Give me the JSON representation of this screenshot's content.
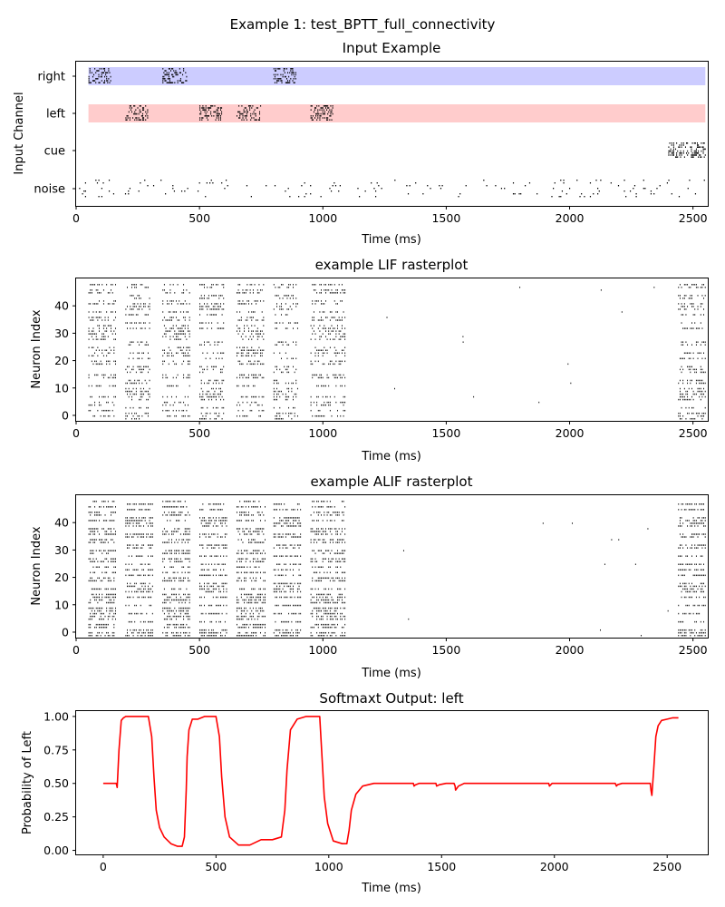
{
  "suptitle": "Example 1: test_BPTT_full_connectivity",
  "colors": {
    "right_band": "#ccccff",
    "left_band": "#ffcccc",
    "spike": "#000000",
    "output_line": "#ff0000"
  },
  "chart_data": [
    {
      "type": "raster",
      "title": "Input Example",
      "xlabel": "Time (ms)",
      "ylabel": "Input Channel",
      "xlim": [
        0,
        2560
      ],
      "xticks": [
        0,
        500,
        1000,
        1500,
        2000,
        2500
      ],
      "channels": [
        "right",
        "left",
        "cue",
        "noise"
      ],
      "bands": [
        {
          "channel": "right",
          "x": [
            50,
            2550
          ],
          "color": "#ccccff"
        },
        {
          "channel": "left",
          "x": [
            50,
            2550
          ],
          "color": "#ffcccc"
        }
      ],
      "spike_bursts": [
        {
          "channel": "right",
          "x": [
            50,
            140
          ]
        },
        {
          "channel": "right",
          "x": [
            350,
            450
          ]
        },
        {
          "channel": "right",
          "x": [
            800,
            890
          ]
        },
        {
          "channel": "left",
          "x": [
            200,
            290
          ]
        },
        {
          "channel": "left",
          "x": [
            500,
            590
          ]
        },
        {
          "channel": "left",
          "x": [
            650,
            750
          ]
        },
        {
          "channel": "left",
          "x": [
            950,
            1040
          ]
        },
        {
          "channel": "cue",
          "x": [
            2400,
            2550
          ]
        }
      ],
      "noise_channel": {
        "channel": "noise",
        "x": [
          0,
          2550
        ]
      }
    },
    {
      "type": "raster",
      "title": "example LIF rasterplot",
      "xlabel": "Time (ms)",
      "ylabel": "Neuron Index",
      "xlim": [
        0,
        2560
      ],
      "ylim": [
        -2,
        50
      ],
      "xticks": [
        0,
        500,
        1000,
        1500,
        2000,
        2500
      ],
      "yticks": [
        0,
        10,
        20,
        30,
        40
      ],
      "active_windows": [
        [
          50,
          160
        ],
        [
          200,
          300
        ],
        [
          350,
          460
        ],
        [
          500,
          600
        ],
        [
          650,
          760
        ],
        [
          800,
          900
        ],
        [
          950,
          1090
        ],
        [
          2440,
          2550
        ]
      ],
      "neurons": 50
    },
    {
      "type": "raster",
      "title": "example ALIF rasterplot",
      "xlabel": "Time (ms)",
      "ylabel": "Neuron Index",
      "xlim": [
        0,
        2560
      ],
      "ylim": [
        -2,
        50
      ],
      "xticks": [
        0,
        500,
        1000,
        1500,
        2000,
        2500
      ],
      "yticks": [
        0,
        10,
        20,
        30,
        40
      ],
      "active_windows": [
        [
          50,
          160
        ],
        [
          200,
          310
        ],
        [
          350,
          460
        ],
        [
          500,
          610
        ],
        [
          650,
          770
        ],
        [
          800,
          910
        ],
        [
          950,
          1090
        ],
        [
          2440,
          2550
        ]
      ],
      "neurons": 50
    },
    {
      "type": "line",
      "title": "Softmaxt Output: left",
      "xlabel": "Time (ms)",
      "ylabel": "Probability of Left",
      "xlim": [
        -120,
        2680
      ],
      "ylim": [
        -0.03,
        1.04
      ],
      "xticks": [
        0,
        500,
        1000,
        1500,
        2000,
        2500
      ],
      "yticks": [
        0.0,
        0.25,
        0.5,
        0.75,
        1.0
      ],
      "ytick_labels": [
        "0.00",
        "0.25",
        "0.50",
        "0.75",
        "1.00"
      ],
      "series": [
        {
          "color": "#ff0000",
          "x": [
            0,
            50,
            58,
            62,
            70,
            80,
            90,
            100,
            120,
            200,
            215,
            225,
            235,
            250,
            270,
            300,
            330,
            350,
            360,
            368,
            372,
            380,
            395,
            420,
            450,
            500,
            515,
            525,
            540,
            560,
            600,
            650,
            700,
            750,
            790,
            805,
            815,
            830,
            860,
            900,
            960,
            970,
            980,
            995,
            1020,
            1060,
            1080,
            1090,
            1100,
            1120,
            1150,
            1200,
            1250,
            1300,
            1350,
            1375,
            1378,
            1385,
            1400,
            1450,
            1475,
            1478,
            1490,
            1520,
            1555,
            1560,
            1562,
            1575,
            1600,
            1700,
            1800,
            1900,
            1975,
            1978,
            1990,
            2010,
            2100,
            2200,
            2270,
            2275,
            2280,
            2300,
            2350,
            2400,
            2425,
            2428,
            2432,
            2440,
            2450,
            2460,
            2475,
            2500,
            2525,
            2550
          ],
          "y": [
            0.5,
            0.5,
            0.5,
            0.47,
            0.75,
            0.97,
            0.99,
            1.0,
            1.0,
            1.0,
            0.85,
            0.55,
            0.3,
            0.17,
            0.1,
            0.05,
            0.03,
            0.03,
            0.1,
            0.45,
            0.7,
            0.9,
            0.98,
            0.98,
            1.0,
            1.0,
            0.85,
            0.55,
            0.25,
            0.1,
            0.04,
            0.04,
            0.08,
            0.08,
            0.1,
            0.3,
            0.6,
            0.9,
            0.98,
            1.0,
            1.0,
            0.7,
            0.4,
            0.2,
            0.07,
            0.05,
            0.05,
            0.15,
            0.3,
            0.42,
            0.48,
            0.5,
            0.5,
            0.5,
            0.5,
            0.5,
            0.48,
            0.49,
            0.5,
            0.5,
            0.5,
            0.48,
            0.49,
            0.5,
            0.5,
            0.48,
            0.45,
            0.48,
            0.5,
            0.5,
            0.5,
            0.5,
            0.5,
            0.48,
            0.5,
            0.5,
            0.5,
            0.5,
            0.5,
            0.48,
            0.49,
            0.5,
            0.5,
            0.5,
            0.5,
            0.45,
            0.41,
            0.6,
            0.85,
            0.93,
            0.97,
            0.98,
            0.99,
            0.99
          ]
        }
      ]
    }
  ]
}
